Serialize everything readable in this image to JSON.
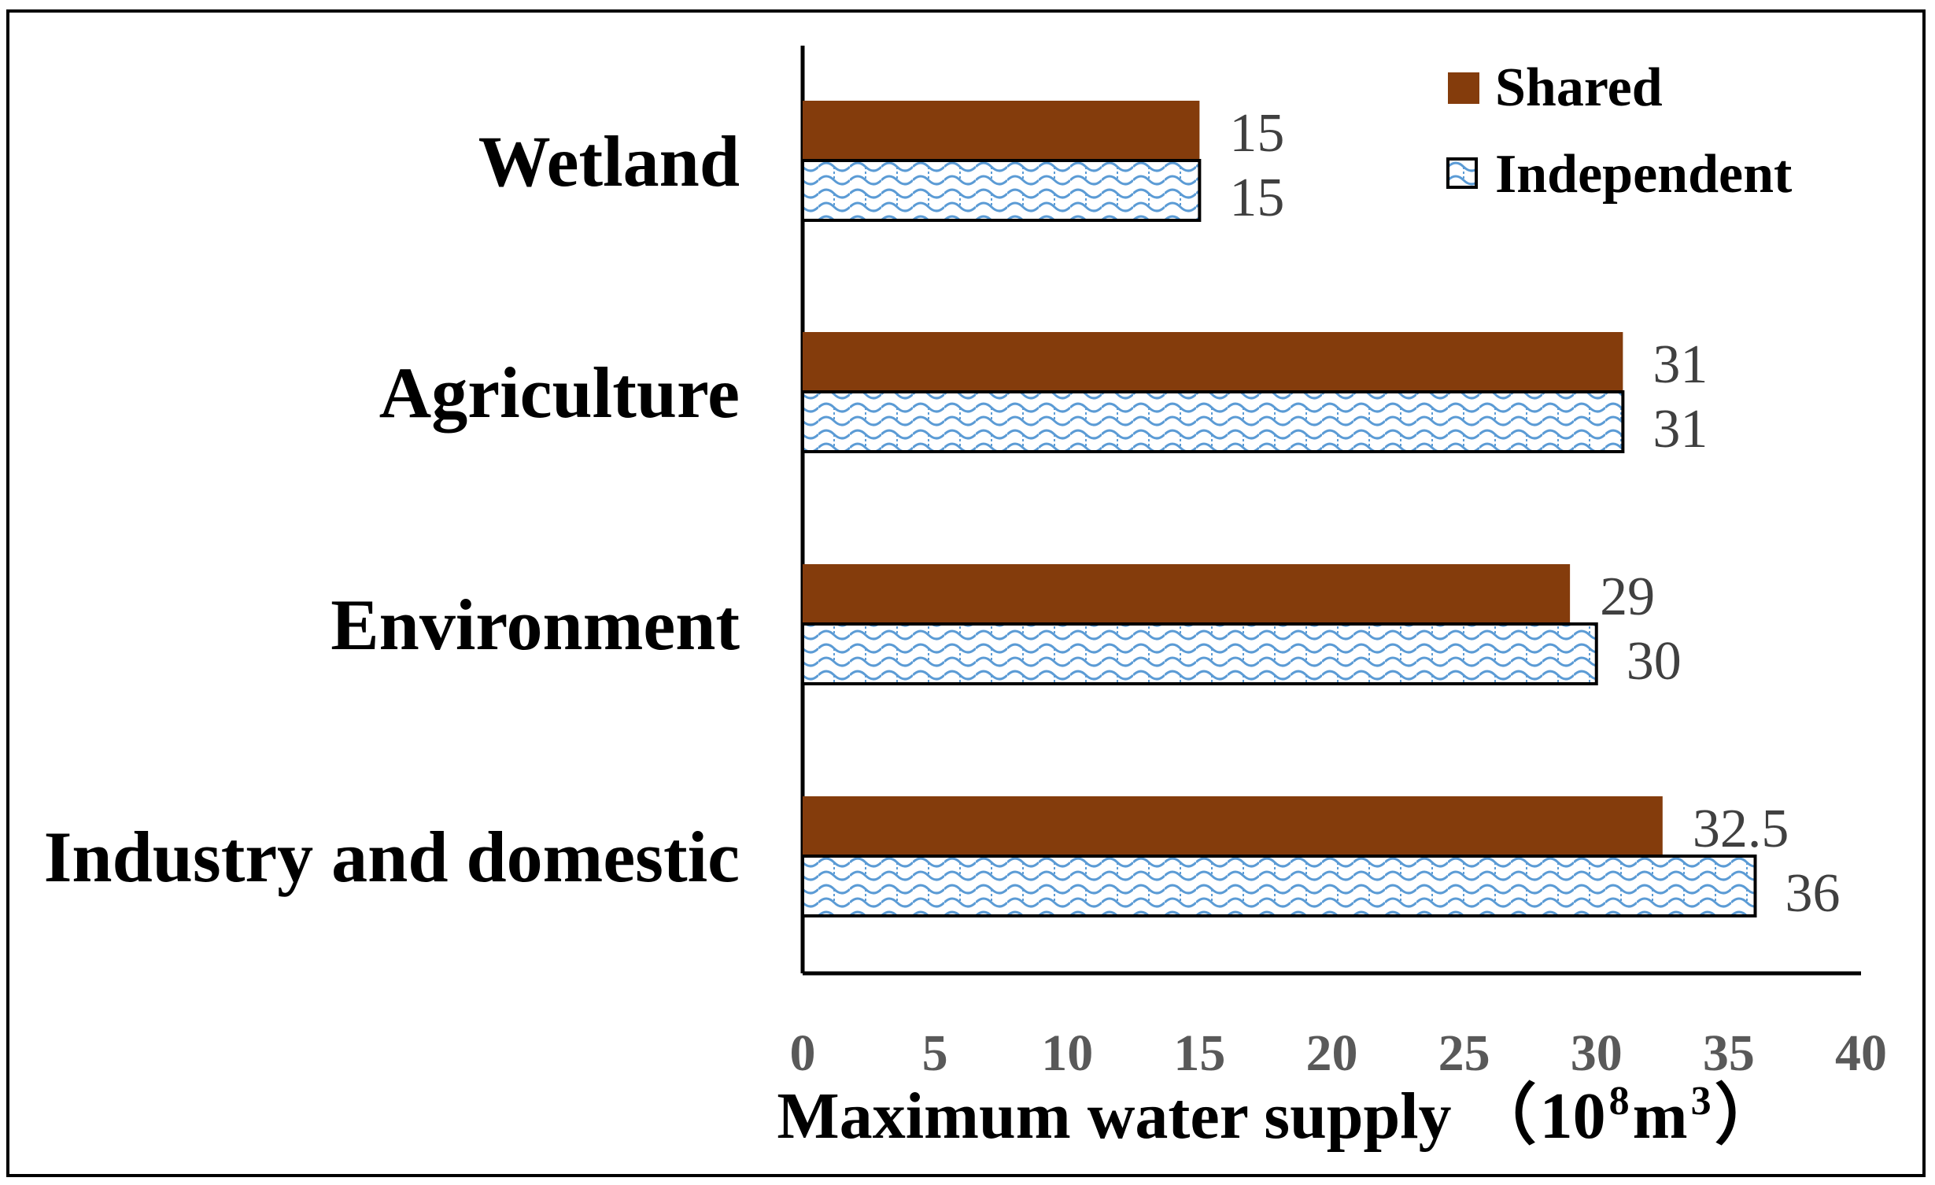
{
  "chart_data": {
    "type": "bar",
    "orientation": "horizontal",
    "categories": [
      "Wetland",
      "Agriculture",
      "Environment",
      "Industry and  domestic"
    ],
    "series": [
      {
        "name": "Shared",
        "values": [
          15,
          31,
          29,
          32.5
        ],
        "labels": [
          "15",
          "31",
          "29",
          "32.5"
        ],
        "color": "#843C0C"
      },
      {
        "name": "Independent",
        "values": [
          15,
          31,
          30,
          36
        ],
        "labels": [
          "15",
          "31",
          "30",
          "36"
        ],
        "color": "#5B9BD5",
        "pattern": "wave"
      }
    ],
    "xlim": [
      0,
      40
    ],
    "xticks": [
      "0",
      "5",
      "10",
      "15",
      "20",
      "25",
      "30",
      "35",
      "40"
    ],
    "xlabel": {
      "text": "Maximum water supply",
      "unit_open": "（",
      "unit_base": "10",
      "unit_exp": "8",
      "unit_mid": "m",
      "unit_exp2": "3",
      "unit_close": "）"
    },
    "legend_position": "top-right",
    "grid": false
  }
}
